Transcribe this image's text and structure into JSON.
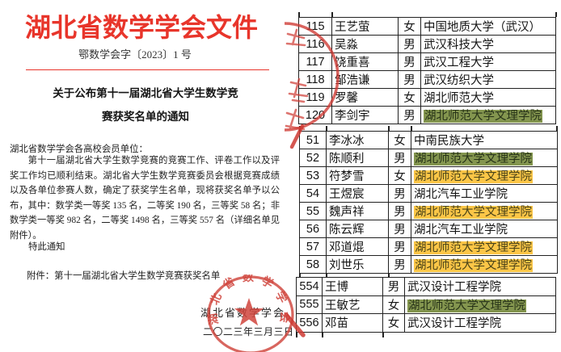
{
  "document": {
    "org_title": "湖北省数学学会文件",
    "doc_number": "鄂数学会字〔2023〕1 号",
    "notice_title_line1": "关于公布第十一届湖北省大学生数学竞",
    "notice_title_line2": "赛获奖名单的通知",
    "salutation": "湖北省数学学会各高校会员单位：",
    "body": "第十一届湖北省大学生数学竞赛的竞赛工作、评卷工作以及评奖工作均已顺利结束。湖北省大学生数学竞赛委员会根据竞赛成绩以及各单位参赛人数，确定了获奖学生名单，现将获奖名单予以公布，其中：数学类一等奖 135 名，二等奖 190 名，三等奖 58 名；非数学类一等奖 982 名，二等奖 1498 名，三等奖 557 名（详细名单见附件）。",
    "closing": "特此通知",
    "attachment": "附件：第十一届湖北省大学生数学竞赛获奖名单",
    "signature": "湖北省数学学会",
    "date": "二〇二三年三月三日",
    "seal_text": "湖北省数学学会"
  },
  "colors": {
    "title_red": "#e8352b",
    "seal_red": "#d0443c",
    "highlight_green": "#84964f",
    "highlight_yellow": "#fcc647"
  },
  "tables": {
    "sections": [
      {
        "rows": [
          {
            "no": "115",
            "name": "王艺萤",
            "gender": "女",
            "school": "中国地质大学（武汉）",
            "highlight": "none"
          },
          {
            "no": "116",
            "name": "吴淼",
            "gender": "男",
            "school": "武汉科技大学",
            "highlight": "none"
          },
          {
            "no": "117",
            "name": "饶重喜",
            "gender": "男",
            "school": "武汉工程大学",
            "highlight": "none"
          },
          {
            "no": "118",
            "name": "邹浩谦",
            "gender": "男",
            "school": "武汉纺织大学",
            "highlight": "none"
          },
          {
            "no": "119",
            "name": "罗馨",
            "gender": "女",
            "school": "湖北师范大学",
            "highlight": "none"
          },
          {
            "no": "120",
            "name": "李剑宇",
            "gender": "男",
            "school": "湖北师范大学文理学院",
            "highlight": "green"
          }
        ]
      },
      {
        "rows": [
          {
            "no": "51",
            "name": "李冰冰",
            "gender": "女",
            "school": "中南民族大学",
            "highlight": "none"
          },
          {
            "no": "52",
            "name": "陈顺利",
            "gender": "男",
            "school": "湖北师范大学文理学院",
            "highlight": "green"
          },
          {
            "no": "53",
            "name": "符梦雪",
            "gender": "女",
            "school": "湖北师范大学文理学院",
            "highlight": "yellow"
          },
          {
            "no": "54",
            "name": "王煜宸",
            "gender": "男",
            "school": "湖北汽车工业学院",
            "highlight": "none"
          },
          {
            "no": "55",
            "name": "魏声祥",
            "gender": "男",
            "school": "湖北师范大学文理学院",
            "highlight": "yellow"
          },
          {
            "no": "56",
            "name": "陈云辉",
            "gender": "男",
            "school": "湖北汽车工业学院",
            "highlight": "none"
          },
          {
            "no": "57",
            "name": "邓道焜",
            "gender": "男",
            "school": "湖北师范大学文理学院",
            "highlight": "yellow"
          },
          {
            "no": "58",
            "name": "刘世乐",
            "gender": "男",
            "school": "湖北师范大学文理学院",
            "highlight": "yellow"
          }
        ]
      },
      {
        "rows": [
          {
            "no": "554",
            "name": "王博",
            "gender": "男",
            "school": "武汉设计工程学院",
            "highlight": "none"
          },
          {
            "no": "555",
            "name": "王敏艺",
            "gender": "女",
            "school": "湖北师范大学文理学院",
            "highlight": "green"
          },
          {
            "no": "556",
            "name": "邓苗",
            "gender": "女",
            "school": "武汉设计工程学院",
            "highlight": "none"
          }
        ]
      }
    ]
  }
}
